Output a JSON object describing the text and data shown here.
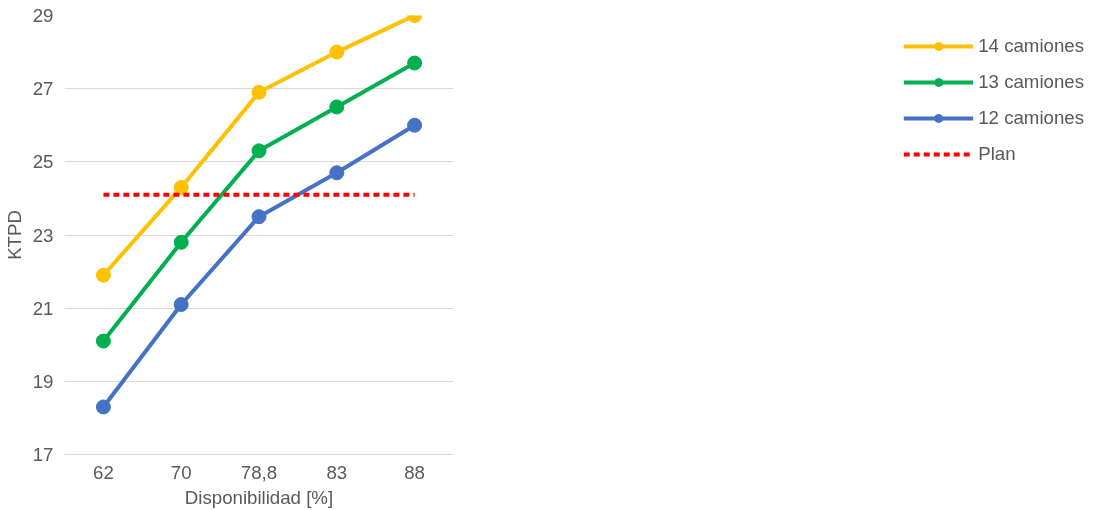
{
  "chart_data": {
    "type": "line",
    "xlabel": "Disponibilidad [%]",
    "ylabel": "KTPD",
    "categories": [
      "62",
      "70",
      "78,8",
      "83",
      "88"
    ],
    "series": [
      {
        "name": "14 camiones",
        "color": "#ffc000",
        "values": [
          21.9,
          24.3,
          26.9,
          28.0,
          29.0
        ]
      },
      {
        "name": "13 camiones",
        "color": "#00b050",
        "values": [
          20.1,
          22.8,
          25.3,
          26.5,
          27.7
        ]
      },
      {
        "name": "12 camiones",
        "color": "#4472c4",
        "values": [
          18.3,
          21.1,
          23.5,
          24.7,
          26.0
        ]
      },
      {
        "name": "Plan",
        "color": "#ff0000",
        "values": [
          24.1,
          24.1,
          24.1,
          24.1,
          24.1
        ],
        "marker": "none",
        "line_style": "dashed"
      }
    ],
    "ylim": [
      17,
      29
    ],
    "yticks": [
      17,
      19,
      21,
      23,
      25,
      27,
      29
    ],
    "grid": "y",
    "legend": "right",
    "marker": "circle",
    "line_style": "solid"
  }
}
